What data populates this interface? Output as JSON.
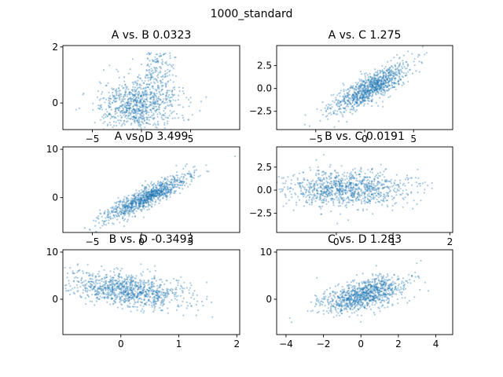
{
  "suptitle": "1000_standard",
  "chart_data": [
    {
      "type": "scatter",
      "title": "A vs. B 0.0323",
      "xlabel": "",
      "ylabel": "",
      "xlim": [
        -8,
        10
      ],
      "ylim": [
        -0.95,
        2.05
      ],
      "xticks": [
        -5,
        0,
        5
      ],
      "yticks": [
        0,
        2
      ],
      "n_points": 1000,
      "x_distribution": {
        "mean": 0,
        "sd": 2.0
      },
      "y_distribution": {
        "base": -0.05,
        "sd": 0.45,
        "upper_cluster": {
          "x_range": [
            0.5,
            3.5
          ],
          "y_range": [
            0.2,
            1.8
          ]
        }
      },
      "correlation_slope": 0.0323
    },
    {
      "type": "scatter",
      "title": "A vs. C 1.275",
      "xlabel": "",
      "ylabel": "",
      "xlim": [
        -9,
        9
      ],
      "ylim": [
        -4.5,
        4.7
      ],
      "xticks": [
        -5,
        0,
        5
      ],
      "yticks": [
        -2.5,
        0.0,
        2.5
      ],
      "n_points": 1000,
      "x_distribution": {
        "mean": 0.5,
        "sd": 2.0
      },
      "y_distribution": {
        "slope": 0.55,
        "sd": 0.75
      },
      "correlation_slope": 1.275
    },
    {
      "type": "scatter",
      "title": "A vs. D 3.499",
      "xlabel": "",
      "ylabel": "",
      "xlim": [
        -8,
        10
      ],
      "ylim": [
        -7.2,
        10.5
      ],
      "xticks": [
        -5,
        0,
        5
      ],
      "yticks": [
        0,
        10
      ],
      "n_points": 1000,
      "x_distribution": {
        "mean": 0.5,
        "sd": 2.2
      },
      "y_distribution": {
        "slope": 1.0,
        "sd": 1.1
      },
      "correlation_slope": 3.499
    },
    {
      "type": "scatter",
      "title": "B vs. C 0.0191",
      "xlabel": "",
      "ylabel": "",
      "xlim": [
        -1.05,
        2.05
      ],
      "ylim": [
        -4.6,
        4.7
      ],
      "xticks": [
        0,
        1,
        2
      ],
      "yticks": [
        -2.5,
        0.0,
        2.5
      ],
      "n_points": 1000,
      "x_distribution": {
        "mean": 0.15,
        "sd": 0.55
      },
      "y_distribution": {
        "mean": 0.1,
        "sd": 1.0
      },
      "correlation_slope": 0.0191
    },
    {
      "type": "scatter",
      "title": "B vs. D -0.3493",
      "xlabel": "",
      "ylabel": "",
      "xlim": [
        -1.0,
        2.05
      ],
      "ylim": [
        -7.5,
        10.5
      ],
      "xticks": [
        0,
        1,
        2
      ],
      "yticks": [
        0,
        10
      ],
      "n_points": 1000,
      "x_distribution": {
        "mean": 0.1,
        "sd": 0.5
      },
      "y_distribution": {
        "base": 2.0,
        "slope": -1.3,
        "sd": 1.8
      },
      "correlation_slope": -0.3493
    },
    {
      "type": "scatter",
      "title": "C vs. D 1.283",
      "xlabel": "",
      "ylabel": "",
      "xlim": [
        -4.5,
        4.9
      ],
      "ylim": [
        -7.5,
        10.5
      ],
      "xticks": [
        -4,
        -2,
        0,
        2,
        4
      ],
      "yticks": [
        0,
        10
      ],
      "n_points": 1000,
      "x_distribution": {
        "mean": 0.1,
        "sd": 1.1
      },
      "y_distribution": {
        "base": 1.0,
        "slope": 0.9,
        "sd": 1.6
      },
      "correlation_slope": 1.283
    }
  ]
}
